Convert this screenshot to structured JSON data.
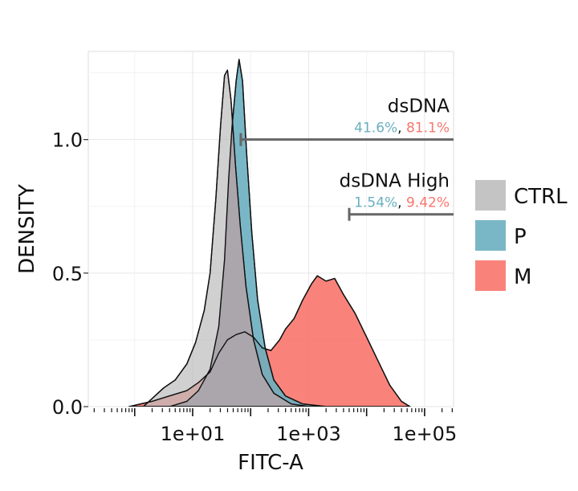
{
  "chart_data": {
    "type": "area",
    "title": "",
    "xlabel": "FITC-A",
    "ylabel": "DENSITY",
    "x_scale": "log10",
    "xlim_log10": [
      -0.8,
      5.5
    ],
    "ylim": [
      0,
      1.33
    ],
    "x_tick_labels": [
      "1e+01",
      "1e+03",
      "1e+05"
    ],
    "x_tick_log10": [
      1,
      3,
      5
    ],
    "y_tick_labels": [
      "0.0",
      "0.5",
      "1.0"
    ],
    "y_ticks": [
      0,
      0.5,
      1.0
    ],
    "grid": true,
    "legend_position": "right",
    "series": [
      {
        "name": "M",
        "color": "#F8766D",
        "points_log10": [
          [
            -0.1,
            0
          ],
          [
            0.1,
            0.01
          ],
          [
            0.3,
            0.02
          ],
          [
            0.6,
            0.04
          ],
          [
            0.9,
            0.06
          ],
          [
            1.1,
            0.09
          ],
          [
            1.3,
            0.13
          ],
          [
            1.45,
            0.2
          ],
          [
            1.6,
            0.25
          ],
          [
            1.75,
            0.27
          ],
          [
            1.9,
            0.28
          ],
          [
            2.05,
            0.26
          ],
          [
            2.2,
            0.22
          ],
          [
            2.35,
            0.21
          ],
          [
            2.5,
            0.25
          ],
          [
            2.6,
            0.29
          ],
          [
            2.75,
            0.33
          ],
          [
            2.9,
            0.4
          ],
          [
            3.05,
            0.46
          ],
          [
            3.15,
            0.49
          ],
          [
            3.3,
            0.47
          ],
          [
            3.45,
            0.48
          ],
          [
            3.6,
            0.42
          ],
          [
            3.8,
            0.35
          ],
          [
            4.0,
            0.26
          ],
          [
            4.2,
            0.17
          ],
          [
            4.4,
            0.08
          ],
          [
            4.6,
            0.02
          ],
          [
            4.75,
            0
          ]
        ]
      },
      {
        "name": "P",
        "color": "#6AAFC0",
        "points_log10": [
          [
            0.6,
            0
          ],
          [
            0.9,
            0.02
          ],
          [
            1.1,
            0.06
          ],
          [
            1.3,
            0.14
          ],
          [
            1.45,
            0.3
          ],
          [
            1.55,
            0.55
          ],
          [
            1.62,
            0.85
          ],
          [
            1.68,
            1.05
          ],
          [
            1.75,
            1.22
          ],
          [
            1.8,
            1.3
          ],
          [
            1.86,
            1.22
          ],
          [
            1.93,
            0.95
          ],
          [
            2.02,
            0.65
          ],
          [
            2.12,
            0.4
          ],
          [
            2.25,
            0.22
          ],
          [
            2.4,
            0.1
          ],
          [
            2.6,
            0.04
          ],
          [
            2.9,
            0.01
          ],
          [
            3.3,
            0
          ]
        ]
      },
      {
        "name": "CTRL",
        "color": "#BEBEBE",
        "points_log10": [
          [
            0.15,
            0
          ],
          [
            0.3,
            0.03
          ],
          [
            0.5,
            0.07
          ],
          [
            0.7,
            0.1
          ],
          [
            0.9,
            0.16
          ],
          [
            1.05,
            0.24
          ],
          [
            1.2,
            0.36
          ],
          [
            1.3,
            0.5
          ],
          [
            1.4,
            0.78
          ],
          [
            1.48,
            1.05
          ],
          [
            1.55,
            1.24
          ],
          [
            1.6,
            1.26
          ],
          [
            1.66,
            1.15
          ],
          [
            1.74,
            0.9
          ],
          [
            1.82,
            0.68
          ],
          [
            1.92,
            0.45
          ],
          [
            2.05,
            0.25
          ],
          [
            2.2,
            0.12
          ],
          [
            2.4,
            0.05
          ],
          [
            2.7,
            0.01
          ],
          [
            3.0,
            0
          ]
        ]
      }
    ],
    "overlap_color": "#A9A2A8",
    "gates": [
      {
        "label": "dsDNA",
        "p_pct": "41.6%",
        "separator": ", ",
        "m_pct": "81.1%",
        "start_log10": 1.83,
        "y": 1.0
      },
      {
        "label": "dsDNA High",
        "p_pct": "1.54%",
        "separator": ", ",
        "m_pct": "9.42%",
        "start_log10": 3.7,
        "y": 0.72
      }
    ],
    "legend": [
      {
        "label": "CTRL",
        "color": "#BEBEBE"
      },
      {
        "label": "P",
        "color": "#6AAFC0"
      },
      {
        "label": "M",
        "color": "#F8766D"
      }
    ]
  }
}
